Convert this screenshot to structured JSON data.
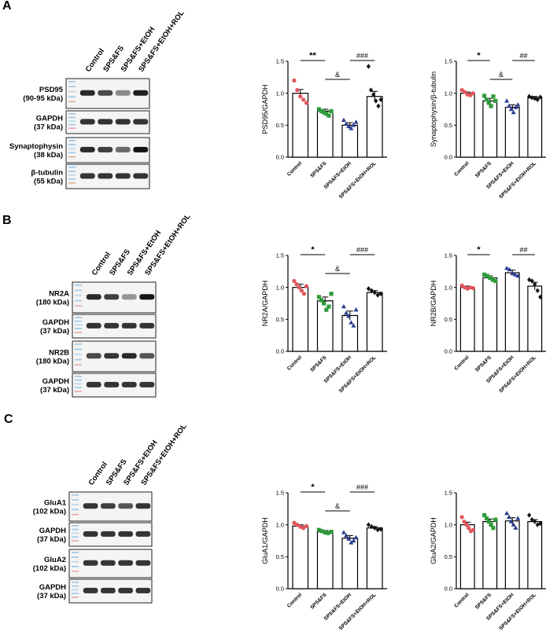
{
  "panels": [
    {
      "letter": "A",
      "lanes": [
        "Control",
        "SPS&FS",
        "SPS&FS+EtOH",
        "SPS&FS+EtOH+ROL"
      ],
      "blots": [
        {
          "name": "PSD95",
          "kda": "(90-95 kDa)",
          "intensity": [
            0.9,
            0.75,
            0.45,
            0.95
          ]
        },
        {
          "name": "GAPDH",
          "kda": "(37 kDa)",
          "intensity": [
            0.85,
            0.85,
            0.85,
            0.85
          ]
        },
        {
          "name": "Synaptophysin",
          "kda": "(38 kDa)",
          "intensity": [
            0.9,
            0.8,
            0.6,
            1.0
          ]
        },
        {
          "name": "β-tubulin",
          "kda": "(55 kDa)",
          "intensity": [
            0.85,
            0.85,
            0.85,
            0.85
          ]
        }
      ]
    },
    {
      "letter": "B",
      "lanes": [
        "Control",
        "SPS&FS",
        "SPS&FS+EtOH",
        "SPS&FS+EtOH+ROL"
      ],
      "blots": [
        {
          "name": "NR2A",
          "kda": "(180 kDa)",
          "intensity": [
            0.9,
            0.8,
            0.4,
            1.0
          ]
        },
        {
          "name": "GAPDH",
          "kda": "(37 kDa)",
          "intensity": [
            0.85,
            0.85,
            0.85,
            0.85
          ]
        },
        {
          "name": "NR2B",
          "kda": "(180 kDa)",
          "intensity": [
            0.75,
            0.85,
            0.9,
            0.7
          ]
        },
        {
          "name": "GAPDH",
          "kda": "(37 kDa)",
          "intensity": [
            0.85,
            0.85,
            0.85,
            0.85
          ]
        }
      ]
    },
    {
      "letter": "C",
      "lanes": [
        "Control",
        "SPS&FS",
        "SPS&FS+EtOH",
        "SPS&FS+EtOH+ROL"
      ],
      "blots": [
        {
          "name": "GluA1",
          "kda": "(102 kDa)",
          "intensity": [
            0.85,
            0.8,
            0.7,
            0.85
          ]
        },
        {
          "name": "GAPDH",
          "kda": "(37 kDa)",
          "intensity": [
            0.85,
            0.85,
            0.85,
            0.85
          ]
        },
        {
          "name": "GluA2",
          "kda": "(102 kDa)",
          "intensity": [
            0.85,
            0.85,
            0.85,
            0.85
          ]
        },
        {
          "name": "GAPDH",
          "kda": "(37 kDa)",
          "intensity": [
            0.85,
            0.85,
            0.85,
            0.85
          ]
        }
      ]
    }
  ],
  "colors": {
    "Control": "#e0555a",
    "SPS&FS": "#2e9a3a",
    "SPS&FS+EtOH": "#2b3a8f",
    "SPS&FS+EtOH+ROL": "#111111"
  },
  "chart_data": [
    {
      "type": "bar",
      "panel": "A",
      "ylabel": "PSD95/GAPDH",
      "ylim": [
        0,
        1.5
      ],
      "yticks": [
        "0.0",
        "0.5",
        "1.0",
        "1.5"
      ],
      "categories": [
        "Control",
        "SPS&FS",
        "SPS&FS+EtOH",
        "SPS&FS+EtOH+ROL"
      ],
      "values": [
        1.0,
        0.72,
        0.5,
        0.95
      ],
      "sem": [
        0.06,
        0.03,
        0.04,
        0.08
      ],
      "points": [
        [
          1.2,
          1.05,
          0.95,
          0.9,
          0.85
        ],
        [
          0.75,
          0.72,
          0.7,
          0.68,
          0.65,
          0.72
        ],
        [
          0.58,
          0.52,
          0.48,
          0.45,
          0.5,
          0.55
        ],
        [
          1.42,
          1.05,
          0.98,
          0.88,
          0.8,
          0.9
        ]
      ],
      "significance": [
        {
          "from": 0,
          "to": 1,
          "label": "**"
        },
        {
          "from": 1,
          "to": 2,
          "label": "&"
        },
        {
          "from": 2,
          "to": 3,
          "label": "###"
        }
      ]
    },
    {
      "type": "bar",
      "panel": "A",
      "ylabel": "Synaptophysin/β-tubulin",
      "ylim": [
        0,
        1.5
      ],
      "yticks": [
        "0.0",
        "0.5",
        "1.0",
        "1.5"
      ],
      "categories": [
        "Control",
        "SPS&FS",
        "SPS&FS+EtOH",
        "SPS&FS+EtOH+ROL"
      ],
      "values": [
        1.0,
        0.88,
        0.78,
        0.93
      ],
      "sem": [
        0.02,
        0.04,
        0.04,
        0.02
      ],
      "points": [
        [
          1.05,
          1.02,
          0.98,
          0.97,
          1.0
        ],
        [
          0.96,
          0.9,
          0.85,
          0.8,
          0.95,
          0.88
        ],
        [
          0.88,
          0.8,
          0.75,
          0.7,
          0.78,
          0.82
        ],
        [
          0.95,
          0.93,
          0.92,
          0.9,
          0.94
        ]
      ],
      "significance": [
        {
          "from": 0,
          "to": 1,
          "label": "*"
        },
        {
          "from": 1,
          "to": 2,
          "label": "&"
        },
        {
          "from": 2,
          "to": 3,
          "label": "##"
        }
      ]
    },
    {
      "type": "bar",
      "panel": "B",
      "ylabel": "NR2A/GAPDH",
      "ylim": [
        0,
        1.5
      ],
      "yticks": [
        "0.0",
        "0.5",
        "1.0",
        "1.5"
      ],
      "categories": [
        "Control",
        "SPS&FS",
        "SPS&FS+EtOH",
        "SPS&FS+EtOH+ROL"
      ],
      "values": [
        1.0,
        0.79,
        0.56,
        0.92
      ],
      "sem": [
        0.05,
        0.06,
        0.07,
        0.03
      ],
      "points": [
        [
          1.1,
          1.05,
          1.0,
          0.95,
          0.9,
          1.02
        ],
        [
          0.85,
          0.8,
          0.75,
          0.65,
          0.7,
          0.9
        ],
        [
          0.7,
          0.6,
          0.55,
          0.45,
          0.4,
          0.65
        ],
        [
          0.98,
          0.95,
          0.92,
          0.88,
          0.9
        ]
      ],
      "significance": [
        {
          "from": 0,
          "to": 1,
          "label": "*"
        },
        {
          "from": 1,
          "to": 2,
          "label": "&"
        },
        {
          "from": 2,
          "to": 3,
          "label": "###"
        }
      ]
    },
    {
      "type": "bar",
      "panel": "B",
      "ylabel": "NR2B/GAPDH",
      "ylim": [
        0,
        1.5
      ],
      "yticks": [
        "0.0",
        "0.5",
        "1.0",
        "1.5"
      ],
      "categories": [
        "Control",
        "SPS&FS",
        "SPS&FS+EtOH",
        "SPS&FS+EtOH+ROL"
      ],
      "values": [
        1.0,
        1.15,
        1.23,
        1.02
      ],
      "sem": [
        0.02,
        0.03,
        0.04,
        0.06
      ],
      "points": [
        [
          1.03,
          1.0,
          0.98,
          1.0,
          0.99
        ],
        [
          1.2,
          1.18,
          1.15,
          1.12,
          1.1
        ],
        [
          1.3,
          1.28,
          1.22,
          1.2,
          1.18
        ],
        [
          1.12,
          1.1,
          1.05,
          0.95,
          0.85
        ]
      ],
      "significance": [
        {
          "from": 0,
          "to": 1,
          "label": "*"
        },
        {
          "from": 2,
          "to": 3,
          "label": "##"
        }
      ]
    },
    {
      "type": "bar",
      "panel": "C",
      "ylabel": "GluA1/GAPDH",
      "ylim": [
        0,
        1.5
      ],
      "yticks": [
        "0.0",
        "0.5",
        "1.0",
        "1.5"
      ],
      "categories": [
        "Control",
        "SPS&FS",
        "SPS&FS+EtOH",
        "SPS&FS+EtOH+ROL"
      ],
      "values": [
        0.98,
        0.89,
        0.79,
        0.95
      ],
      "sem": [
        0.02,
        0.02,
        0.04,
        0.02
      ],
      "points": [
        [
          1.03,
          1.0,
          0.97,
          0.95,
          0.98
        ],
        [
          0.92,
          0.9,
          0.88,
          0.87,
          0.89
        ],
        [
          0.88,
          0.83,
          0.78,
          0.72,
          0.75,
          0.8
        ],
        [
          1.0,
          0.97,
          0.95,
          0.92,
          0.93
        ]
      ],
      "significance": [
        {
          "from": 0,
          "to": 1,
          "label": "*"
        },
        {
          "from": 1,
          "to": 2,
          "label": "&"
        },
        {
          "from": 2,
          "to": 3,
          "label": "###"
        }
      ]
    },
    {
      "type": "bar",
      "panel": "C",
      "ylabel": "GluA2/GAPDH",
      "ylim": [
        0,
        1.5
      ],
      "yticks": [
        "0.0",
        "0.5",
        "1.0",
        "1.5"
      ],
      "categories": [
        "Control",
        "SPS&FS",
        "SPS&FS+EtOH",
        "SPS&FS+EtOH+ROL"
      ],
      "values": [
        1.0,
        1.05,
        1.06,
        1.05
      ],
      "sem": [
        0.04,
        0.04,
        0.05,
        0.03
      ],
      "points": [
        [
          1.12,
          1.05,
          1.0,
          0.95,
          0.9,
          0.92
        ],
        [
          1.15,
          1.1,
          1.05,
          1.0,
          0.95,
          1.08
        ],
        [
          1.18,
          1.12,
          1.05,
          1.0,
          0.95,
          1.1
        ],
        [
          1.15,
          1.08,
          1.05,
          1.0,
          1.02
        ]
      ],
      "significance": []
    }
  ]
}
